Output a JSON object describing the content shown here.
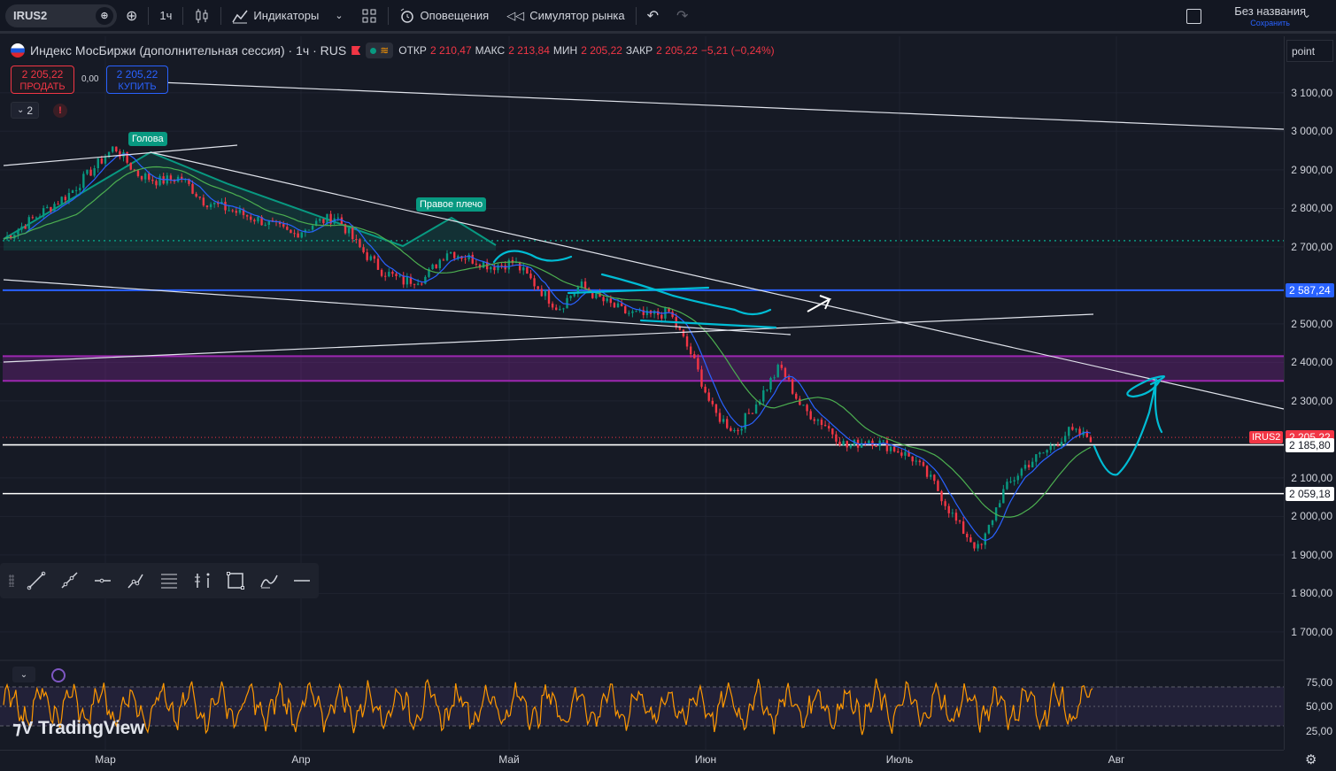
{
  "toolbar": {
    "symbol": "IRUS2",
    "timeframe": "1ч",
    "indicators_label": "Индикаторы",
    "alerts_label": "Оповещения",
    "replay_label": "Симулятор рынка",
    "layout_title": "Без названия",
    "layout_status": "Сохранить"
  },
  "legend": {
    "title": "Индекс МосБиржи (дополнительная сессия) · 1ч · RUS",
    "open_label": "ОТКР",
    "open": "2 210,47",
    "high_label": "МАКС",
    "high": "2 213,84",
    "low_label": "МИН",
    "low": "2 205,22",
    "close_label": "ЗАКР",
    "close": "2 205,22",
    "change": "−5,21 (−0,24%)"
  },
  "trade": {
    "sell_price": "2 205,22",
    "sell_label": "ПРОДАТЬ",
    "buy_price": "2 205,22",
    "buy_label": "КУПИТЬ",
    "spread": "0,00",
    "collapsed_count": "2",
    "alert_mark": "!"
  },
  "labels": {
    "head": "Голова",
    "right_shoulder": "Правое плечо"
  },
  "point_label": "point",
  "price_axis": {
    "ticks": [
      {
        "label": "3 100,00",
        "value": 3100
      },
      {
        "label": "3 000,00",
        "value": 3000
      },
      {
        "label": "2 900,00",
        "value": 2900
      },
      {
        "label": "2 800,00",
        "value": 2800
      },
      {
        "label": "2 700,00",
        "value": 2700
      },
      {
        "label": "2 500,00",
        "value": 2500
      },
      {
        "label": "2 400,00",
        "value": 2400
      },
      {
        "label": "2 300,00",
        "value": 2300
      },
      {
        "label": "2 100,00",
        "value": 2100
      },
      {
        "label": "2 000,00",
        "value": 2000
      },
      {
        "label": "1 900,00",
        "value": 1900
      },
      {
        "label": "1 800,00",
        "value": 1800
      },
      {
        "label": "1 700,00",
        "value": 1700
      }
    ],
    "tags": [
      {
        "label": "2 587,24",
        "value": 2587.24,
        "bg": "#2962ff",
        "fg": "#ffffff"
      },
      {
        "label": "2 205,22",
        "value": 2205.22,
        "bg": "#f23645",
        "fg": "#ffffff"
      },
      {
        "label": "2 185,80",
        "value": 2185.8,
        "bg": "#ffffff",
        "fg": "#131722"
      },
      {
        "label": "2 059,18",
        "value": 2059.18,
        "bg": "#ffffff",
        "fg": "#131722"
      }
    ],
    "symbol_tag": "IRUS2"
  },
  "rsi_axis": [
    {
      "label": "75,00",
      "value": 75
    },
    {
      "label": "50,00",
      "value": 50
    },
    {
      "label": "25,00",
      "value": 25
    }
  ],
  "time_axis": [
    "Мар",
    "Апр",
    "Май",
    "Июн",
    "Июль",
    "Авг"
  ],
  "brand": "TradingView",
  "colors": {
    "up": "#089981",
    "down": "#f23645",
    "blue_line": "#2962ff",
    "zone": "#9c27b0",
    "rsi": "#ff9800",
    "drawing": "#00bcd4"
  },
  "chart_data": {
    "type": "line",
    "series": [
      {
        "name": "IRUS2",
        "values": [
          2720,
          2760,
          2800,
          2840,
          2900,
          2960,
          2890,
          2870,
          2880,
          2820,
          2800,
          2780,
          2760,
          2730,
          2760,
          2780,
          2700,
          2640,
          2610,
          2620,
          2690,
          2670,
          2650,
          2660,
          2600,
          2540,
          2600,
          2560,
          2530,
          2520,
          2530,
          2420,
          2270,
          2220,
          2300,
          2390,
          2280,
          2240,
          2180,
          2200,
          2180,
          2150,
          2080,
          1980,
          1910,
          2060,
          2130,
          2170,
          2220,
          2205
        ]
      }
    ],
    "ylim": [
      1640,
      3180
    ],
    "rsi_ylim": [
      10,
      90
    ]
  }
}
